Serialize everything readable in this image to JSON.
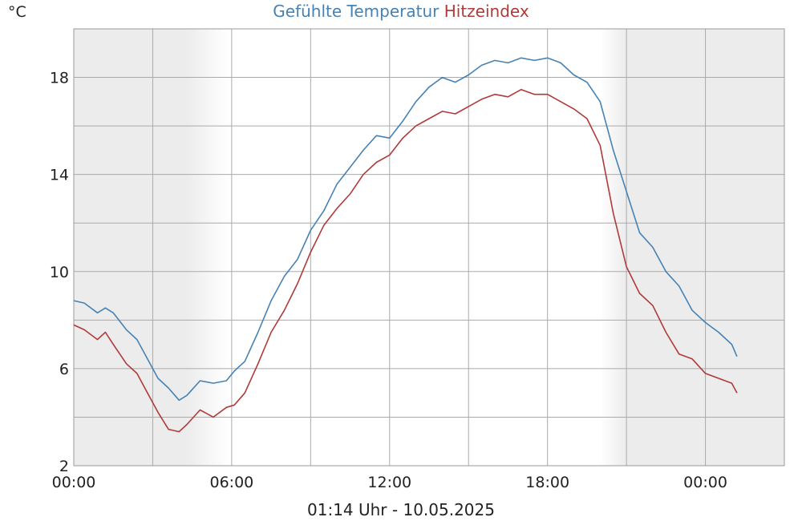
{
  "unit_label": "°C",
  "footer": "01:14 Uhr - 10.05.2025",
  "colors": {
    "series1": "#4682b4",
    "series2": "#b03a3a",
    "night": "#ececec",
    "grid": "#aaaaaa"
  },
  "chart_data": {
    "type": "line",
    "title_parts": [
      "Gefühlte Temperatur",
      "Hitzeindex"
    ],
    "x_unit": "hours since 00:00",
    "xlim": [
      0,
      27
    ],
    "ylim": [
      2,
      20
    ],
    "y_ticks": [
      2,
      6,
      10,
      14,
      18
    ],
    "y_tick_labels": [
      "2",
      "6",
      "10",
      "14",
      "18"
    ],
    "x_ticks": [
      0,
      6,
      12,
      18,
      24
    ],
    "x_tick_labels": [
      "00:00",
      "06:00",
      "12:00",
      "18:00",
      "00:00"
    ],
    "grid": true,
    "night_shading": [
      [
        0,
        5.3
      ],
      [
        21,
        27
      ]
    ],
    "series": [
      {
        "name": "Gefühlte Temperatur",
        "x": [
          0,
          0.4,
          0.9,
          1.2,
          1.5,
          2.0,
          2.4,
          2.8,
          3.2,
          3.6,
          4.0,
          4.3,
          4.8,
          5.3,
          5.8,
          6.1,
          6.5,
          7.0,
          7.5,
          8.0,
          8.5,
          9.0,
          9.5,
          10.0,
          10.5,
          11.0,
          11.5,
          12.0,
          12.5,
          13.0,
          13.5,
          14.0,
          14.5,
          15.0,
          15.5,
          16.0,
          16.5,
          17.0,
          17.5,
          18.0,
          18.5,
          19.0,
          19.5,
          20.0,
          20.5,
          21.0,
          21.5,
          22.0,
          22.5,
          23.0,
          23.5,
          24.0,
          24.5,
          25.0,
          25.2
        ],
        "y": [
          8.8,
          8.7,
          8.3,
          8.5,
          8.3,
          7.6,
          7.2,
          6.4,
          5.6,
          5.2,
          4.7,
          4.9,
          5.5,
          5.4,
          5.5,
          5.9,
          6.3,
          7.5,
          8.8,
          9.8,
          10.5,
          11.7,
          12.5,
          13.6,
          14.3,
          15.0,
          15.6,
          15.5,
          16.2,
          17.0,
          17.6,
          18.0,
          17.8,
          18.1,
          18.5,
          18.7,
          18.6,
          18.8,
          18.7,
          18.8,
          18.6,
          18.1,
          17.8,
          17.0,
          15.0,
          13.3,
          11.6,
          11.0,
          10.0,
          9.4,
          8.4,
          7.9,
          7.5,
          7.0,
          6.5
        ]
      },
      {
        "name": "Hitzeindex",
        "x": [
          0,
          0.4,
          0.9,
          1.2,
          1.5,
          2.0,
          2.4,
          2.8,
          3.2,
          3.6,
          4.0,
          4.3,
          4.8,
          5.3,
          5.8,
          6.1,
          6.5,
          7.0,
          7.5,
          8.0,
          8.5,
          9.0,
          9.5,
          10.0,
          10.5,
          11.0,
          11.5,
          12.0,
          12.5,
          13.0,
          13.5,
          14.0,
          14.5,
          15.0,
          15.5,
          16.0,
          16.5,
          17.0,
          17.5,
          18.0,
          18.5,
          19.0,
          19.5,
          20.0,
          20.5,
          21.0,
          21.5,
          22.0,
          22.5,
          23.0,
          23.5,
          24.0,
          24.5,
          25.0,
          25.2
        ],
        "y": [
          7.8,
          7.6,
          7.2,
          7.5,
          7.0,
          6.2,
          5.8,
          5.0,
          4.2,
          3.5,
          3.4,
          3.7,
          4.3,
          4.0,
          4.4,
          4.5,
          5.0,
          6.2,
          7.5,
          8.4,
          9.5,
          10.8,
          11.9,
          12.6,
          13.2,
          14.0,
          14.5,
          14.8,
          15.5,
          16.0,
          16.3,
          16.6,
          16.5,
          16.8,
          17.1,
          17.3,
          17.2,
          17.5,
          17.3,
          17.3,
          17.0,
          16.7,
          16.3,
          15.2,
          12.4,
          10.2,
          9.1,
          8.6,
          7.5,
          6.6,
          6.4,
          5.8,
          5.6,
          5.4,
          5.0
        ]
      }
    ]
  }
}
